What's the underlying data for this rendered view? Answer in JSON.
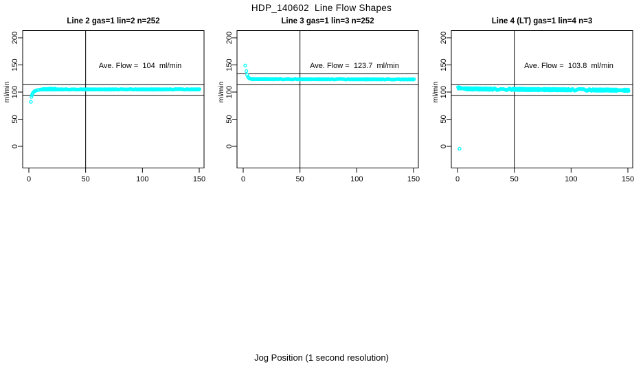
{
  "title": "HDP_140602  Line Flow Shapes",
  "xlabel": "Jog Position (1 second resolution)",
  "colors": {
    "marker": "#00FFFF",
    "axis": "#000000",
    "background": "#FFFFFF"
  },
  "chart_data": [
    {
      "type": "scatter",
      "title": "Line 2 gas=1 lin=2 n=252",
      "ylabel": "ml/min",
      "annotation": "Ave. Flow =  104  ml/min",
      "ave_flow": 104,
      "n": 252,
      "x_ticks": [
        0,
        50,
        100,
        150
      ],
      "y_ticks": [
        0,
        50,
        100,
        150,
        200
      ],
      "xlim": [
        0,
        150
      ],
      "ylim": [
        -40,
        212
      ],
      "ref_lines_y": [
        114,
        94
      ],
      "vline_x": 50,
      "transient_points": [
        [
          1.8,
          82
        ],
        [
          2.3,
          91
        ],
        [
          2.7,
          94.5
        ],
        [
          3.2,
          97
        ],
        [
          3.8,
          99
        ],
        [
          4.5,
          100.6
        ],
        [
          5.3,
          101.8
        ],
        [
          6.2,
          102.7
        ],
        [
          7.2,
          103.4
        ],
        [
          8.3,
          103.9
        ],
        [
          9.5,
          104.3
        ],
        [
          10.8,
          104.6
        ]
      ],
      "steady_segments": [
        {
          "x_start": 11,
          "x_end": 150.5,
          "y_start": 104.9,
          "y_end": 104.9,
          "spread": 0.5,
          "step": 0.6
        },
        {
          "x_start": 13,
          "x_end": 24,
          "y_start": 106.2,
          "y_end": 106.2,
          "spread": 0.4,
          "step": 1.1
        }
      ]
    },
    {
      "type": "scatter",
      "title": "Line 3 gas=1 lin=3 n=252",
      "ylabel": "ml/min",
      "annotation": "Ave. Flow =  123.7  ml/min",
      "ave_flow": 123.7,
      "n": 252,
      "x_ticks": [
        0,
        50,
        100,
        150
      ],
      "y_ticks": [
        0,
        50,
        100,
        150,
        200
      ],
      "xlim": [
        0,
        150
      ],
      "ylim": [
        -40,
        212
      ],
      "ref_lines_y": [
        133.7,
        113.7
      ],
      "vline_x": 50,
      "transient_points": [
        [
          1.8,
          149
        ],
        [
          2.8,
          138.5
        ],
        [
          3.5,
          131.5
        ],
        [
          4.2,
          128
        ],
        [
          5,
          126
        ],
        [
          5.9,
          124.8
        ],
        [
          6.8,
          124.2
        ]
      ],
      "steady_segments": [
        {
          "x_start": 7,
          "x_end": 150.5,
          "y_start": 123.9,
          "y_end": 123.4,
          "spread": 0.5,
          "step": 0.6
        }
      ]
    },
    {
      "type": "scatter",
      "title": "Line 4 (LT) gas=1 lin=4 n=3",
      "ylabel": "ml/min",
      "annotation": "Ave. Flow =  103.8  ml/min",
      "ave_flow": 103.8,
      "n": 3,
      "x_ticks": [
        0,
        50,
        100,
        150
      ],
      "y_ticks": [
        0,
        50,
        100,
        150,
        200
      ],
      "xlim": [
        0,
        150
      ],
      "ylim": [
        -40,
        212
      ],
      "ref_lines_y": [
        113.8,
        93.8
      ],
      "vline_x": 50,
      "transient_points": [
        [
          1.8,
          -4.5
        ]
      ],
      "steady_segments": [
        {
          "x_start": 0.5,
          "x_end": 7,
          "y_start": 107.8,
          "y_end": 106.2,
          "spread": 1.3,
          "step": 0.4
        },
        {
          "x_start": 7,
          "x_end": 151,
          "y_start": 105.9,
          "y_end": 103.2,
          "spread": 1.5,
          "step": 0.4
        }
      ]
    }
  ]
}
